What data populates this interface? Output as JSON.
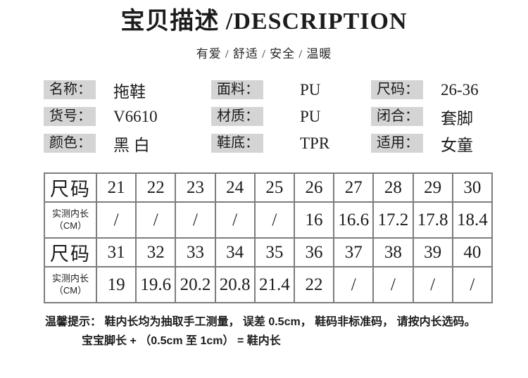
{
  "header": {
    "title": "宝贝描述 /DESCRIPTION",
    "subtitle": "有爱 / 舒适 / 安全 / 温暖"
  },
  "attributes": {
    "items": [
      {
        "label": "名称：",
        "value": "拖鞋"
      },
      {
        "label": "面料：",
        "value": "PU"
      },
      {
        "label": "尺码：",
        "value": "26-36"
      },
      {
        "label": "货号：",
        "value": "V6610"
      },
      {
        "label": "材质：",
        "value": "PU"
      },
      {
        "label": "闭合：",
        "value": "套脚"
      },
      {
        "label": "颜色：",
        "value": "黑 白"
      },
      {
        "label": "鞋底：",
        "value": "TPR"
      },
      {
        "label": "适用：",
        "value": "女童"
      }
    ]
  },
  "size_table": {
    "rows": [
      {
        "header": "尺码",
        "header_sub": "",
        "cells": [
          "21",
          "22",
          "23",
          "24",
          "25",
          "26",
          "27",
          "28",
          "29",
          "30"
        ]
      },
      {
        "header": "实测内长",
        "header_sub": "（CM）",
        "cells": [
          "/",
          "/",
          "/",
          "/",
          "/",
          "16",
          "16.6",
          "17.2",
          "17.8",
          "18.4"
        ]
      },
      {
        "header": "尺码",
        "header_sub": "",
        "cells": [
          "31",
          "32",
          "33",
          "34",
          "35",
          "36",
          "37",
          "38",
          "39",
          "40"
        ]
      },
      {
        "header": "实测内长",
        "header_sub": "（CM）",
        "cells": [
          "19",
          "19.6",
          "20.2",
          "20.8",
          "21.4",
          "22",
          "/",
          "/",
          "/",
          "/"
        ]
      }
    ]
  },
  "notes": {
    "line1": "温馨提示： 鞋内长均为抽取手工测量， 误差 0.5cm， 鞋码非标准码， 请按内长选码。",
    "line2": "宝宝脚长 + （0.5cm 至 1cm） = 鞋内长"
  },
  "colors": {
    "label_bg": "#d4d4d4",
    "table_border": "#7d7d7d",
    "text": "#1c1c1c"
  }
}
